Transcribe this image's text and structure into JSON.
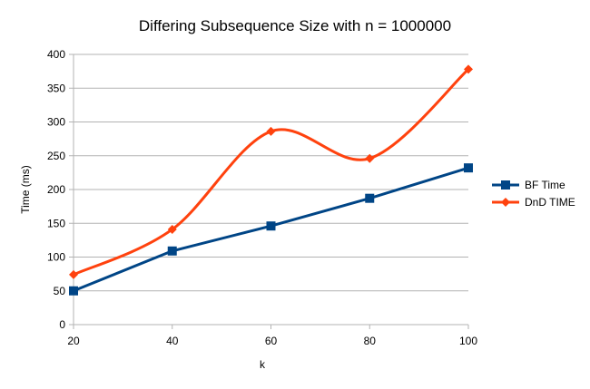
{
  "chart_data": {
    "type": "line",
    "title": "Differing Subsequence Size with n = 1000000",
    "xlabel": "k",
    "ylabel": "Time (ms)",
    "x": [
      20,
      40,
      60,
      80,
      100
    ],
    "xlim": [
      20,
      100
    ],
    "ylim": [
      0,
      400
    ],
    "yticks": [
      0,
      50,
      100,
      150,
      200,
      250,
      300,
      350,
      400
    ],
    "xticks": [
      20,
      40,
      60,
      80,
      100
    ],
    "grid": "horizontal",
    "legend": "right",
    "series": [
      {
        "name": "BF Time",
        "values": [
          50,
          109,
          146,
          187,
          232
        ],
        "color": "#004586",
        "marker": "square",
        "smooth": false
      },
      {
        "name": "DnD TIME",
        "values": [
          74,
          141,
          286,
          246,
          378
        ],
        "color": "#ff420e",
        "marker": "diamond",
        "smooth": true
      }
    ]
  }
}
